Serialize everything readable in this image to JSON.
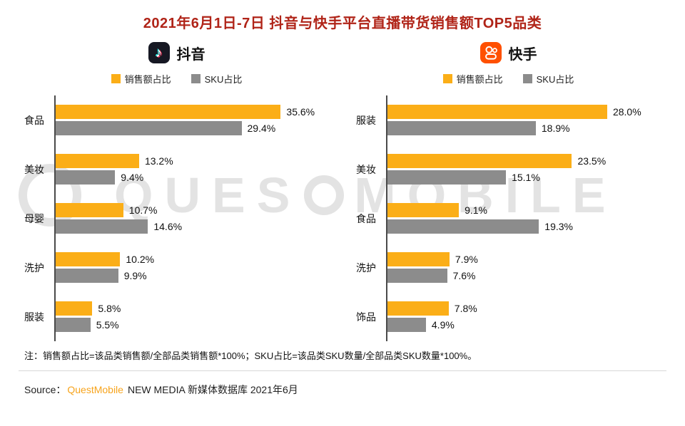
{
  "page": {
    "title": "2021年6月1日-7日 抖音与快手平台直播带货销售额TOP5品类",
    "note": "注：销售额占比=该品类销售额/全部品类销售额*100%；SKU占比=该品类SKU数量/全部品类SKU数量*100%。",
    "source_label": "Source：",
    "source_brand": "QuestMobile",
    "source_rest": "NEW MEDIA 新媒体数据库 2021年6月",
    "watermark_left": "QUES",
    "watermark_right": "MOBILE"
  },
  "legend": {
    "sales": "销售额占比",
    "sku": "SKU占比"
  },
  "colors": {
    "sales": "#FBAE17",
    "sku": "#8C8C8C",
    "douyin": "#161823",
    "kuaishou": "#FF5000",
    "title": "#B02418",
    "brand_orange": "#F7A41D",
    "watermark": "#E3E3E3"
  },
  "chart_data": [
    {
      "type": "bar",
      "platform": "抖音",
      "orientation": "horizontal",
      "categories": [
        "食品",
        "美妆",
        "母婴",
        "洗护",
        "服装"
      ],
      "series": [
        {
          "name": "销售额占比",
          "color": "#FBAE17",
          "values": [
            35.6,
            13.2,
            10.7,
            10.2,
            5.8
          ]
        },
        {
          "name": "SKU占比",
          "color": "#8C8C8C",
          "values": [
            29.4,
            9.4,
            14.6,
            9.9,
            5.5
          ]
        }
      ],
      "value_suffix": "%",
      "xlim": [
        0,
        36
      ],
      "grid": false,
      "legend_position": "top"
    },
    {
      "type": "bar",
      "platform": "快手",
      "orientation": "horizontal",
      "categories": [
        "服装",
        "美妆",
        "食品",
        "洗护",
        "饰品"
      ],
      "series": [
        {
          "name": "销售额占比",
          "color": "#FBAE17",
          "values": [
            28.0,
            23.5,
            9.1,
            7.9,
            7.8
          ]
        },
        {
          "name": "SKU占比",
          "color": "#8C8C8C",
          "values": [
            18.9,
            15.1,
            19.3,
            7.6,
            4.9
          ]
        }
      ],
      "value_suffix": "%",
      "xlim": [
        0,
        29
      ],
      "grid": false,
      "legend_position": "top"
    }
  ]
}
